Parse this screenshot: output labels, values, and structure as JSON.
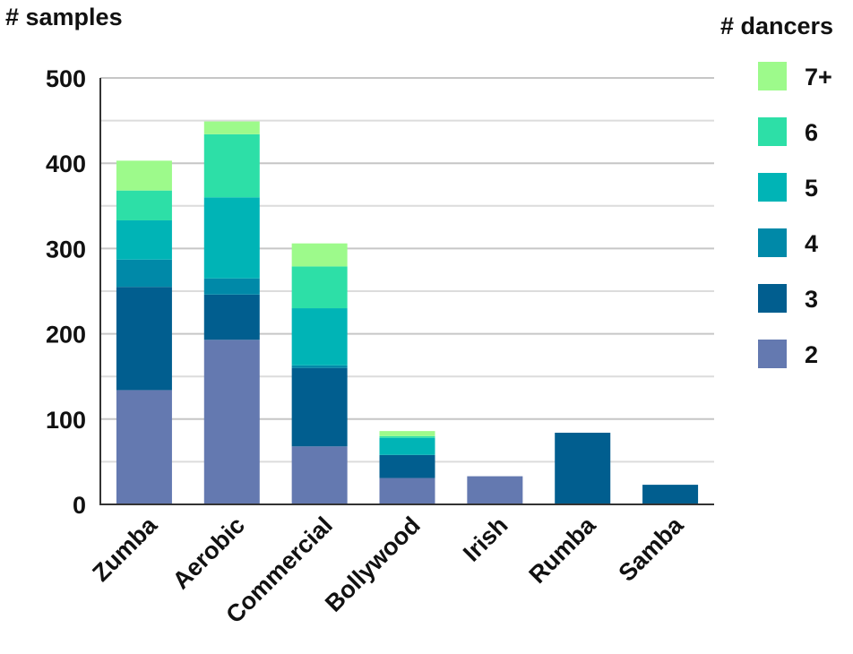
{
  "chart_data": {
    "type": "bar",
    "stacked": true,
    "title": "",
    "xlabel": "",
    "ylabel": "# samples",
    "ylim": [
      0,
      500
    ],
    "yticks": [
      0,
      100,
      200,
      300,
      400,
      500
    ],
    "grid": true,
    "legend_title": "# dancers",
    "legend_position": "right",
    "categories": [
      "Zumba",
      "Aerobic",
      "Commercial",
      "Bollywood",
      "Irish",
      "Rumba",
      "Samba"
    ],
    "series": [
      {
        "name": "2",
        "color": "#6479b0",
        "values": [
          134,
          193,
          68,
          31,
          33,
          0,
          0
        ]
      },
      {
        "name": "3",
        "color": "#015e8f",
        "values": [
          121,
          53,
          92,
          27,
          0,
          84,
          23
        ]
      },
      {
        "name": "4",
        "color": "#0089a8",
        "values": [
          32,
          19,
          3,
          0,
          0,
          0,
          0
        ]
      },
      {
        "name": "5",
        "color": "#00b4b6",
        "values": [
          46,
          95,
          67,
          20,
          0,
          0,
          0
        ]
      },
      {
        "name": "6",
        "color": "#2ddfa7",
        "values": [
          35,
          74,
          49,
          2,
          0,
          0,
          0
        ]
      },
      {
        "name": "7+",
        "color": "#9dfa8b",
        "values": [
          35,
          15,
          27,
          6,
          0,
          0,
          0
        ]
      }
    ]
  }
}
